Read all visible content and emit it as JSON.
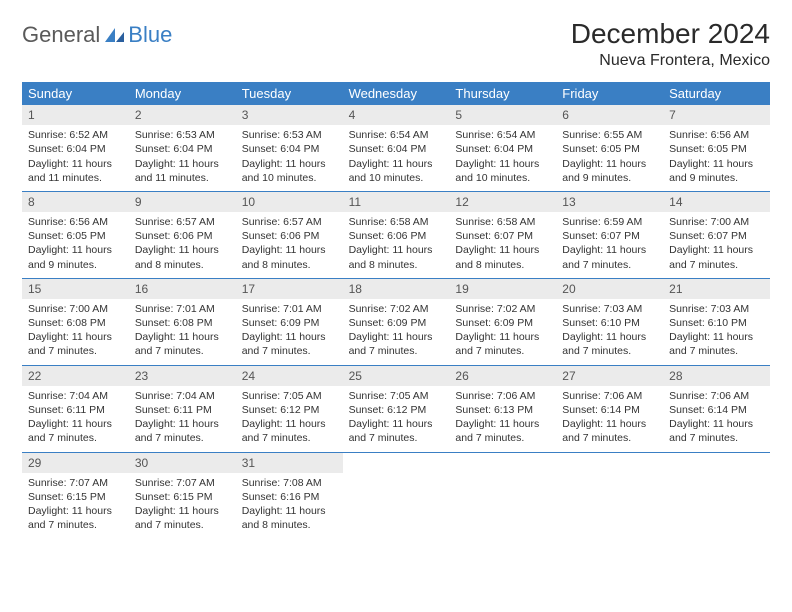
{
  "logo": {
    "text1": "General",
    "text2": "Blue"
  },
  "title": "December 2024",
  "location": "Nueva Frontera, Mexico",
  "colors": {
    "header_bg": "#3a7fc4",
    "header_text": "#ffffff",
    "daynum_bg": "#ebebeb",
    "border": "#3a7fc4",
    "body_text": "#333333"
  },
  "weekdays": [
    "Sunday",
    "Monday",
    "Tuesday",
    "Wednesday",
    "Thursday",
    "Friday",
    "Saturday"
  ],
  "weeks": [
    [
      {
        "n": "1",
        "sr": "Sunrise: 6:52 AM",
        "ss": "Sunset: 6:04 PM",
        "d1": "Daylight: 11 hours",
        "d2": "and 11 minutes."
      },
      {
        "n": "2",
        "sr": "Sunrise: 6:53 AM",
        "ss": "Sunset: 6:04 PM",
        "d1": "Daylight: 11 hours",
        "d2": "and 11 minutes."
      },
      {
        "n": "3",
        "sr": "Sunrise: 6:53 AM",
        "ss": "Sunset: 6:04 PM",
        "d1": "Daylight: 11 hours",
        "d2": "and 10 minutes."
      },
      {
        "n": "4",
        "sr": "Sunrise: 6:54 AM",
        "ss": "Sunset: 6:04 PM",
        "d1": "Daylight: 11 hours",
        "d2": "and 10 minutes."
      },
      {
        "n": "5",
        "sr": "Sunrise: 6:54 AM",
        "ss": "Sunset: 6:04 PM",
        "d1": "Daylight: 11 hours",
        "d2": "and 10 minutes."
      },
      {
        "n": "6",
        "sr": "Sunrise: 6:55 AM",
        "ss": "Sunset: 6:05 PM",
        "d1": "Daylight: 11 hours",
        "d2": "and 9 minutes."
      },
      {
        "n": "7",
        "sr": "Sunrise: 6:56 AM",
        "ss": "Sunset: 6:05 PM",
        "d1": "Daylight: 11 hours",
        "d2": "and 9 minutes."
      }
    ],
    [
      {
        "n": "8",
        "sr": "Sunrise: 6:56 AM",
        "ss": "Sunset: 6:05 PM",
        "d1": "Daylight: 11 hours",
        "d2": "and 9 minutes."
      },
      {
        "n": "9",
        "sr": "Sunrise: 6:57 AM",
        "ss": "Sunset: 6:06 PM",
        "d1": "Daylight: 11 hours",
        "d2": "and 8 minutes."
      },
      {
        "n": "10",
        "sr": "Sunrise: 6:57 AM",
        "ss": "Sunset: 6:06 PM",
        "d1": "Daylight: 11 hours",
        "d2": "and 8 minutes."
      },
      {
        "n": "11",
        "sr": "Sunrise: 6:58 AM",
        "ss": "Sunset: 6:06 PM",
        "d1": "Daylight: 11 hours",
        "d2": "and 8 minutes."
      },
      {
        "n": "12",
        "sr": "Sunrise: 6:58 AM",
        "ss": "Sunset: 6:07 PM",
        "d1": "Daylight: 11 hours",
        "d2": "and 8 minutes."
      },
      {
        "n": "13",
        "sr": "Sunrise: 6:59 AM",
        "ss": "Sunset: 6:07 PM",
        "d1": "Daylight: 11 hours",
        "d2": "and 7 minutes."
      },
      {
        "n": "14",
        "sr": "Sunrise: 7:00 AM",
        "ss": "Sunset: 6:07 PM",
        "d1": "Daylight: 11 hours",
        "d2": "and 7 minutes."
      }
    ],
    [
      {
        "n": "15",
        "sr": "Sunrise: 7:00 AM",
        "ss": "Sunset: 6:08 PM",
        "d1": "Daylight: 11 hours",
        "d2": "and 7 minutes."
      },
      {
        "n": "16",
        "sr": "Sunrise: 7:01 AM",
        "ss": "Sunset: 6:08 PM",
        "d1": "Daylight: 11 hours",
        "d2": "and 7 minutes."
      },
      {
        "n": "17",
        "sr": "Sunrise: 7:01 AM",
        "ss": "Sunset: 6:09 PM",
        "d1": "Daylight: 11 hours",
        "d2": "and 7 minutes."
      },
      {
        "n": "18",
        "sr": "Sunrise: 7:02 AM",
        "ss": "Sunset: 6:09 PM",
        "d1": "Daylight: 11 hours",
        "d2": "and 7 minutes."
      },
      {
        "n": "19",
        "sr": "Sunrise: 7:02 AM",
        "ss": "Sunset: 6:09 PM",
        "d1": "Daylight: 11 hours",
        "d2": "and 7 minutes."
      },
      {
        "n": "20",
        "sr": "Sunrise: 7:03 AM",
        "ss": "Sunset: 6:10 PM",
        "d1": "Daylight: 11 hours",
        "d2": "and 7 minutes."
      },
      {
        "n": "21",
        "sr": "Sunrise: 7:03 AM",
        "ss": "Sunset: 6:10 PM",
        "d1": "Daylight: 11 hours",
        "d2": "and 7 minutes."
      }
    ],
    [
      {
        "n": "22",
        "sr": "Sunrise: 7:04 AM",
        "ss": "Sunset: 6:11 PM",
        "d1": "Daylight: 11 hours",
        "d2": "and 7 minutes."
      },
      {
        "n": "23",
        "sr": "Sunrise: 7:04 AM",
        "ss": "Sunset: 6:11 PM",
        "d1": "Daylight: 11 hours",
        "d2": "and 7 minutes."
      },
      {
        "n": "24",
        "sr": "Sunrise: 7:05 AM",
        "ss": "Sunset: 6:12 PM",
        "d1": "Daylight: 11 hours",
        "d2": "and 7 minutes."
      },
      {
        "n": "25",
        "sr": "Sunrise: 7:05 AM",
        "ss": "Sunset: 6:12 PM",
        "d1": "Daylight: 11 hours",
        "d2": "and 7 minutes."
      },
      {
        "n": "26",
        "sr": "Sunrise: 7:06 AM",
        "ss": "Sunset: 6:13 PM",
        "d1": "Daylight: 11 hours",
        "d2": "and 7 minutes."
      },
      {
        "n": "27",
        "sr": "Sunrise: 7:06 AM",
        "ss": "Sunset: 6:14 PM",
        "d1": "Daylight: 11 hours",
        "d2": "and 7 minutes."
      },
      {
        "n": "28",
        "sr": "Sunrise: 7:06 AM",
        "ss": "Sunset: 6:14 PM",
        "d1": "Daylight: 11 hours",
        "d2": "and 7 minutes."
      }
    ],
    [
      {
        "n": "29",
        "sr": "Sunrise: 7:07 AM",
        "ss": "Sunset: 6:15 PM",
        "d1": "Daylight: 11 hours",
        "d2": "and 7 minutes."
      },
      {
        "n": "30",
        "sr": "Sunrise: 7:07 AM",
        "ss": "Sunset: 6:15 PM",
        "d1": "Daylight: 11 hours",
        "d2": "and 7 minutes."
      },
      {
        "n": "31",
        "sr": "Sunrise: 7:08 AM",
        "ss": "Sunset: 6:16 PM",
        "d1": "Daylight: 11 hours",
        "d2": "and 8 minutes."
      },
      null,
      null,
      null,
      null
    ]
  ]
}
